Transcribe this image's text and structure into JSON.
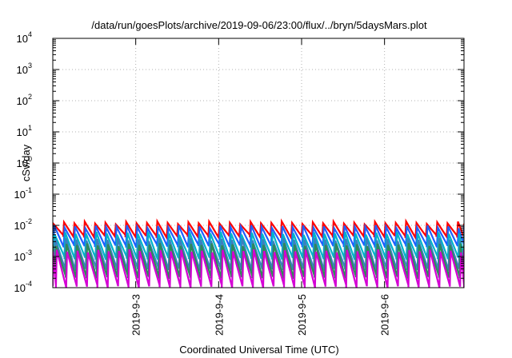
{
  "chart_data": {
    "type": "line",
    "title": "/data/run/goesPlots/archive/2019-09-06/23:00/flux/../bryn/5daysMars.plot",
    "xlabel": "Coordinated Universal Time (UTC)",
    "ylabel": "cSv/day",
    "y_scale": "log",
    "ylim": [
      0.0001,
      10000
    ],
    "y_ticks": [
      {
        "base": "10",
        "exp": "-4"
      },
      {
        "base": "10",
        "exp": "-3"
      },
      {
        "base": "10",
        "exp": "-2"
      },
      {
        "base": "10",
        "exp": "-1"
      },
      {
        "base": "10",
        "exp": "0"
      },
      {
        "base": "10",
        "exp": "1"
      },
      {
        "base": "10",
        "exp": "2"
      },
      {
        "base": "10",
        "exp": "3"
      },
      {
        "base": "10",
        "exp": "4"
      }
    ],
    "x_ticks": [
      "2019-9-3",
      "2019-9-4",
      "2019-9-5",
      "2019-9-6"
    ],
    "xlim": [
      "2019-09-02 00:00",
      "2019-09-06 23:00"
    ],
    "grid": true,
    "waveform": {
      "period_hours": 3,
      "start": "2019-09-02 00:00",
      "end": "2019-09-06 23:00"
    },
    "series": [
      {
        "color": "#ff0000",
        "peak": 0.012,
        "trough": 0.0045
      },
      {
        "color": "#1f5fff",
        "peak": 0.009,
        "trough": 0.0022
      },
      {
        "color": "#00b4c8",
        "peak": 0.0055,
        "trough": 0.0009
      },
      {
        "color": "#3a7fbf",
        "peak": 0.0035,
        "trough": 0.0004
      },
      {
        "color": "#2e8b57",
        "peak": 0.0024,
        "trough": 0.00022
      },
      {
        "color": "#d400d4",
        "peak": 0.0015,
        "trough": 0.00011
      }
    ]
  }
}
